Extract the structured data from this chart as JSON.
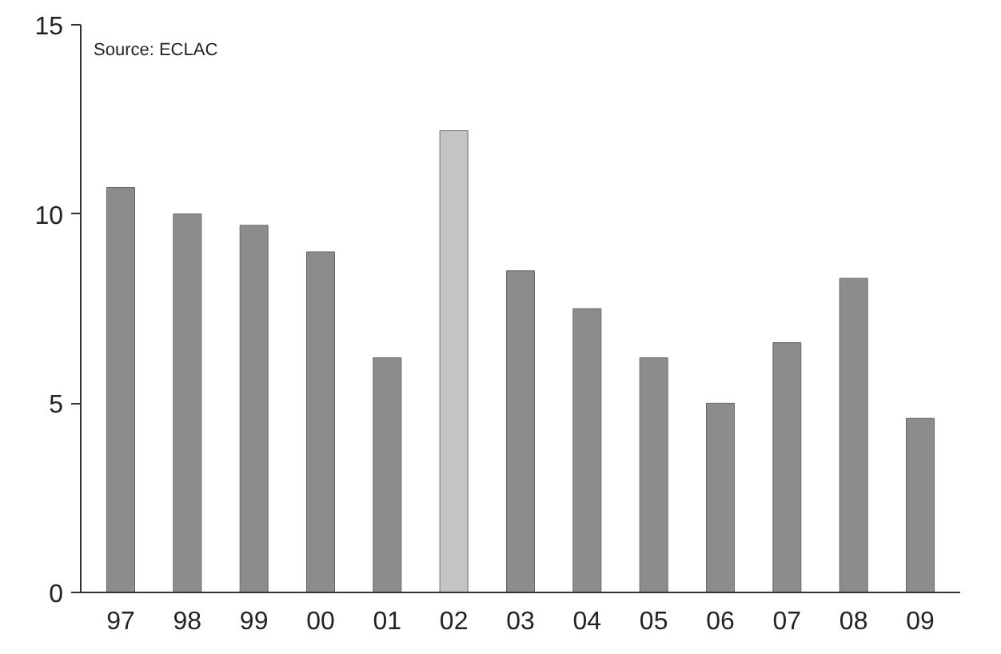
{
  "chart_data": {
    "type": "bar",
    "categories": [
      "97",
      "98",
      "99",
      "00",
      "01",
      "02",
      "03",
      "04",
      "05",
      "06",
      "07",
      "08",
      "09"
    ],
    "values": [
      10.7,
      10.0,
      9.7,
      9.0,
      6.2,
      12.2,
      8.5,
      7.5,
      6.2,
      5.0,
      6.6,
      8.3,
      4.6
    ],
    "colors": [
      "#8c8c8c",
      "#8c8c8c",
      "#8c8c8c",
      "#8c8c8c",
      "#8c8c8c",
      "#c4c4c4",
      "#8c8c8c",
      "#8c8c8c",
      "#8c8c8c",
      "#8c8c8c",
      "#8c8c8c",
      "#8c8c8c",
      "#8c8c8c"
    ],
    "ylim": [
      0,
      15
    ],
    "yticks": [
      0,
      5,
      10,
      15
    ],
    "grid": false,
    "annotations": [
      "Source: ECLAC"
    ]
  }
}
